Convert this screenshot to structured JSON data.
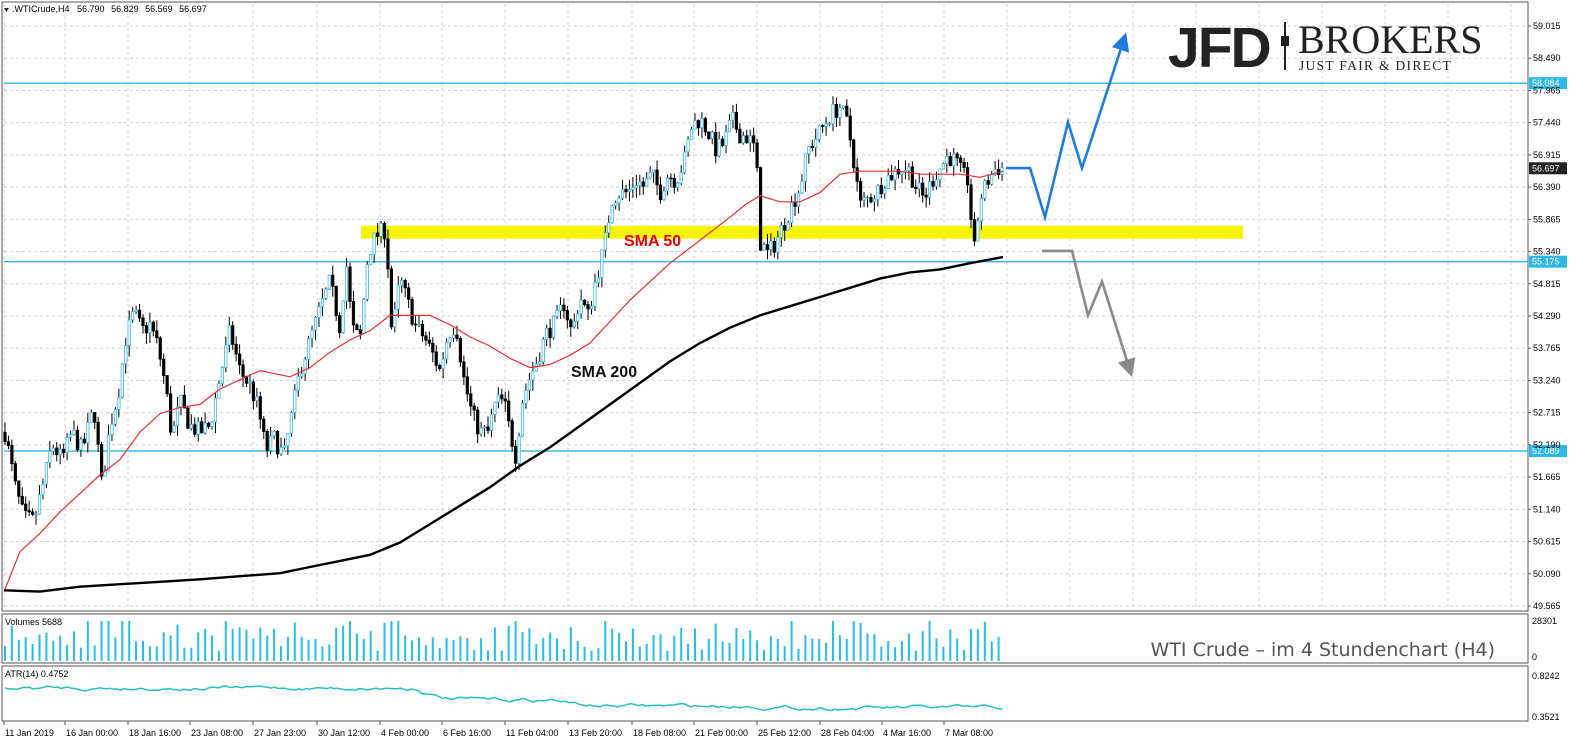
{
  "chart_data": {
    "type": "candlestick",
    "symbol_header": ".WTICrude,H4",
    "ohlc_header": {
      "open": "56.790",
      "high": "56.829",
      "low": "56.569",
      "close": "56.697"
    },
    "brand": {
      "left": "JFD",
      "right": "BROKERS",
      "tagline": "JUST FAIR & DIRECT"
    },
    "caption": "WTI Crude –  im  4 Stundenchart (H4)",
    "annotations": {
      "sma50_label": "SMA 50",
      "sma200_label": "SMA 200"
    },
    "price_axis": {
      "ticks": [
        "59.015",
        "58.490",
        "57.965",
        "57.440",
        "56.915",
        "56.390",
        "55.865",
        "55.340",
        "54.815",
        "54.290",
        "53.765",
        "53.240",
        "52.715",
        "52.190",
        "51.665",
        "51.140",
        "50.615",
        "50.090",
        "49.565"
      ],
      "ylim": [
        49.565,
        59.015
      ],
      "current_price": "56.697"
    },
    "horizontal_levels": [
      {
        "price": 58.084,
        "label": "58.084"
      },
      {
        "price": 55.175,
        "label": "55.175"
      },
      {
        "price": 52.089,
        "label": "52.089"
      }
    ],
    "support_zone": {
      "from": 55.55,
      "to": 55.76
    },
    "time_axis": [
      "11 Jan 2019",
      "16 Jan 00:00",
      "18 Jan 16:00",
      "23 Jan 08:00",
      "27 Jan 23:00",
      "30 Jan 12:00",
      "4 Feb 00:00",
      "6 Feb 16:00",
      "11 Feb 04:00",
      "13 Feb 20:00",
      "18 Feb 08:00",
      "21 Feb 00:00",
      "25 Feb 12:00",
      "28 Feb 04:00",
      "4 Mar 16:00",
      "7 Mar 08:00"
    ],
    "price_path": [
      [
        0,
        52.8
      ],
      [
        8,
        52.15
      ],
      [
        16,
        51.45
      ],
      [
        24,
        51.0
      ],
      [
        34,
        50.95
      ],
      [
        44,
        51.6
      ],
      [
        52,
        52.2
      ],
      [
        62,
        51.95
      ],
      [
        72,
        52.4
      ],
      [
        82,
        52.1
      ],
      [
        94,
        52.8
      ],
      [
        102,
        51.5
      ],
      [
        110,
        52.5
      ],
      [
        118,
        53.0
      ],
      [
        126,
        53.95
      ],
      [
        134,
        54.35
      ],
      [
        142,
        54.05
      ],
      [
        150,
        54.15
      ],
      [
        158,
        53.8
      ],
      [
        166,
        53.1
      ],
      [
        172,
        52.3
      ],
      [
        180,
        52.9
      ],
      [
        190,
        52.5
      ],
      [
        200,
        52.4
      ],
      [
        210,
        52.5
      ],
      [
        220,
        53.3
      ],
      [
        230,
        54.05
      ],
      [
        240,
        53.4
      ],
      [
        250,
        53.15
      ],
      [
        258,
        52.8
      ],
      [
        266,
        52.1
      ],
      [
        274,
        52.3
      ],
      [
        284,
        52.0
      ],
      [
        292,
        52.7
      ],
      [
        300,
        53.4
      ],
      [
        310,
        53.9
      ],
      [
        320,
        54.4
      ],
      [
        330,
        54.85
      ],
      [
        340,
        54.1
      ],
      [
        346,
        55.2
      ],
      [
        352,
        54.1
      ],
      [
        360,
        53.9
      ],
      [
        368,
        55.3
      ],
      [
        376,
        55.6
      ],
      [
        386,
        55.7
      ],
      [
        392,
        53.95
      ],
      [
        400,
        54.9
      ],
      [
        408,
        54.5
      ],
      [
        416,
        54.1
      ],
      [
        424,
        53.95
      ],
      [
        432,
        53.7
      ],
      [
        440,
        53.4
      ],
      [
        448,
        54.0
      ],
      [
        456,
        54.15
      ],
      [
        464,
        53.25
      ],
      [
        472,
        52.7
      ],
      [
        480,
        52.4
      ],
      [
        488,
        52.4
      ],
      [
        496,
        52.9
      ],
      [
        504,
        52.9
      ],
      [
        510,
        52.4
      ],
      [
        516,
        52.0
      ],
      [
        522,
        52.9
      ],
      [
        530,
        53.3
      ],
      [
        538,
        53.6
      ],
      [
        546,
        54.0
      ],
      [
        556,
        54.2
      ],
      [
        564,
        54.5
      ],
      [
        572,
        54.0
      ],
      [
        580,
        54.6
      ],
      [
        588,
        54.3
      ],
      [
        596,
        54.9
      ],
      [
        604,
        55.4
      ],
      [
        612,
        56.2
      ],
      [
        620,
        56.3
      ],
      [
        628,
        56.3
      ],
      [
        636,
        56.5
      ],
      [
        644,
        56.4
      ],
      [
        652,
        56.6
      ],
      [
        660,
        56.3
      ],
      [
        668,
        56.6
      ],
      [
        676,
        56.5
      ],
      [
        684,
        56.8
      ],
      [
        692,
        57.4
      ],
      [
        700,
        57.5
      ],
      [
        708,
        57.3
      ],
      [
        716,
        57.0
      ],
      [
        724,
        57.1
      ],
      [
        732,
        57.5
      ],
      [
        740,
        57.25
      ],
      [
        748,
        57.2
      ],
      [
        756,
        57.0
      ],
      [
        760,
        55.5
      ],
      [
        768,
        55.3
      ],
      [
        776,
        55.5
      ],
      [
        784,
        55.8
      ],
      [
        792,
        56.1
      ],
      [
        800,
        56.4
      ],
      [
        808,
        57.0
      ],
      [
        816,
        57.2
      ],
      [
        824,
        57.4
      ],
      [
        832,
        57.6
      ],
      [
        840,
        57.7
      ],
      [
        848,
        57.4
      ],
      [
        854,
        56.8
      ],
      [
        860,
        56.1
      ],
      [
        868,
        56.2
      ],
      [
        876,
        56.3
      ],
      [
        884,
        56.5
      ],
      [
        892,
        56.6
      ],
      [
        900,
        56.7
      ],
      [
        908,
        56.7
      ],
      [
        916,
        56.4
      ],
      [
        924,
        56.2
      ],
      [
        932,
        56.5
      ],
      [
        940,
        56.7
      ],
      [
        948,
        56.9
      ],
      [
        956,
        56.8
      ],
      [
        962,
        56.6
      ],
      [
        968,
        56.5
      ],
      [
        974,
        55.3
      ],
      [
        980,
        56.2
      ],
      [
        988,
        56.5
      ],
      [
        996,
        56.7
      ],
      [
        1003,
        56.7
      ]
    ],
    "sma50_path": [
      [
        4,
        49.8
      ],
      [
        20,
        50.45
      ],
      [
        40,
        50.75
      ],
      [
        60,
        51.1
      ],
      [
        80,
        51.4
      ],
      [
        100,
        51.7
      ],
      [
        120,
        51.95
      ],
      [
        140,
        52.4
      ],
      [
        160,
        52.7
      ],
      [
        180,
        52.8
      ],
      [
        200,
        52.85
      ],
      [
        220,
        53.1
      ],
      [
        240,
        53.25
      ],
      [
        260,
        53.4
      ],
      [
        275,
        53.35
      ],
      [
        290,
        53.3
      ],
      [
        310,
        53.45
      ],
      [
        330,
        53.7
      ],
      [
        350,
        53.9
      ],
      [
        370,
        54.05
      ],
      [
        390,
        54.3
      ],
      [
        410,
        54.3
      ],
      [
        430,
        54.3
      ],
      [
        450,
        54.15
      ],
      [
        470,
        53.95
      ],
      [
        490,
        53.8
      ],
      [
        510,
        53.6
      ],
      [
        530,
        53.45
      ],
      [
        550,
        53.5
      ],
      [
        570,
        53.65
      ],
      [
        590,
        53.85
      ],
      [
        610,
        54.2
      ],
      [
        630,
        54.55
      ],
      [
        650,
        54.85
      ],
      [
        670,
        55.15
      ],
      [
        690,
        55.4
      ],
      [
        710,
        55.65
      ],
      [
        730,
        55.9
      ],
      [
        745,
        56.1
      ],
      [
        760,
        56.25
      ],
      [
        780,
        56.15
      ],
      [
        800,
        56.15
      ],
      [
        820,
        56.3
      ],
      [
        840,
        56.6
      ],
      [
        860,
        56.65
      ],
      [
        880,
        56.65
      ],
      [
        900,
        56.65
      ],
      [
        920,
        56.6
      ],
      [
        940,
        56.6
      ],
      [
        960,
        56.6
      ],
      [
        980,
        56.55
      ],
      [
        1003,
        56.65
      ]
    ],
    "sma200_path": [
      [
        4,
        49.82
      ],
      [
        40,
        49.8
      ],
      [
        80,
        49.88
      ],
      [
        120,
        49.92
      ],
      [
        160,
        49.96
      ],
      [
        200,
        50.0
      ],
      [
        240,
        50.05
      ],
      [
        280,
        50.1
      ],
      [
        310,
        50.2
      ],
      [
        340,
        50.3
      ],
      [
        370,
        50.4
      ],
      [
        400,
        50.6
      ],
      [
        430,
        50.9
      ],
      [
        460,
        51.2
      ],
      [
        490,
        51.5
      ],
      [
        520,
        51.85
      ],
      [
        550,
        52.15
      ],
      [
        580,
        52.5
      ],
      [
        610,
        52.85
      ],
      [
        640,
        53.2
      ],
      [
        670,
        53.55
      ],
      [
        700,
        53.85
      ],
      [
        730,
        54.1
      ],
      [
        760,
        54.3
      ],
      [
        790,
        54.45
      ],
      [
        820,
        54.6
      ],
      [
        850,
        54.75
      ],
      [
        880,
        54.9
      ],
      [
        910,
        55.0
      ],
      [
        940,
        55.05
      ],
      [
        970,
        55.15
      ],
      [
        1003,
        55.25
      ]
    ],
    "scenario_up_path": [
      [
        1006,
        56.7
      ],
      [
        1030,
        56.7
      ],
      [
        1045,
        55.9
      ],
      [
        1068,
        57.45
      ],
      [
        1082,
        56.7
      ],
      [
        1125,
        58.85
      ]
    ],
    "scenario_down_path": [
      [
        1042,
        55.35
      ],
      [
        1072,
        55.35
      ],
      [
        1088,
        54.3
      ],
      [
        1102,
        54.85
      ],
      [
        1131,
        53.35
      ]
    ],
    "volume_indicator": {
      "label": "Volumes 5688",
      "axis_ticks": [
        "28301",
        "0"
      ]
    },
    "atr_indicator": {
      "label": "ATR(14) 0.4752",
      "axis_ticks": [
        "0.8242",
        "0.3521"
      ]
    }
  }
}
